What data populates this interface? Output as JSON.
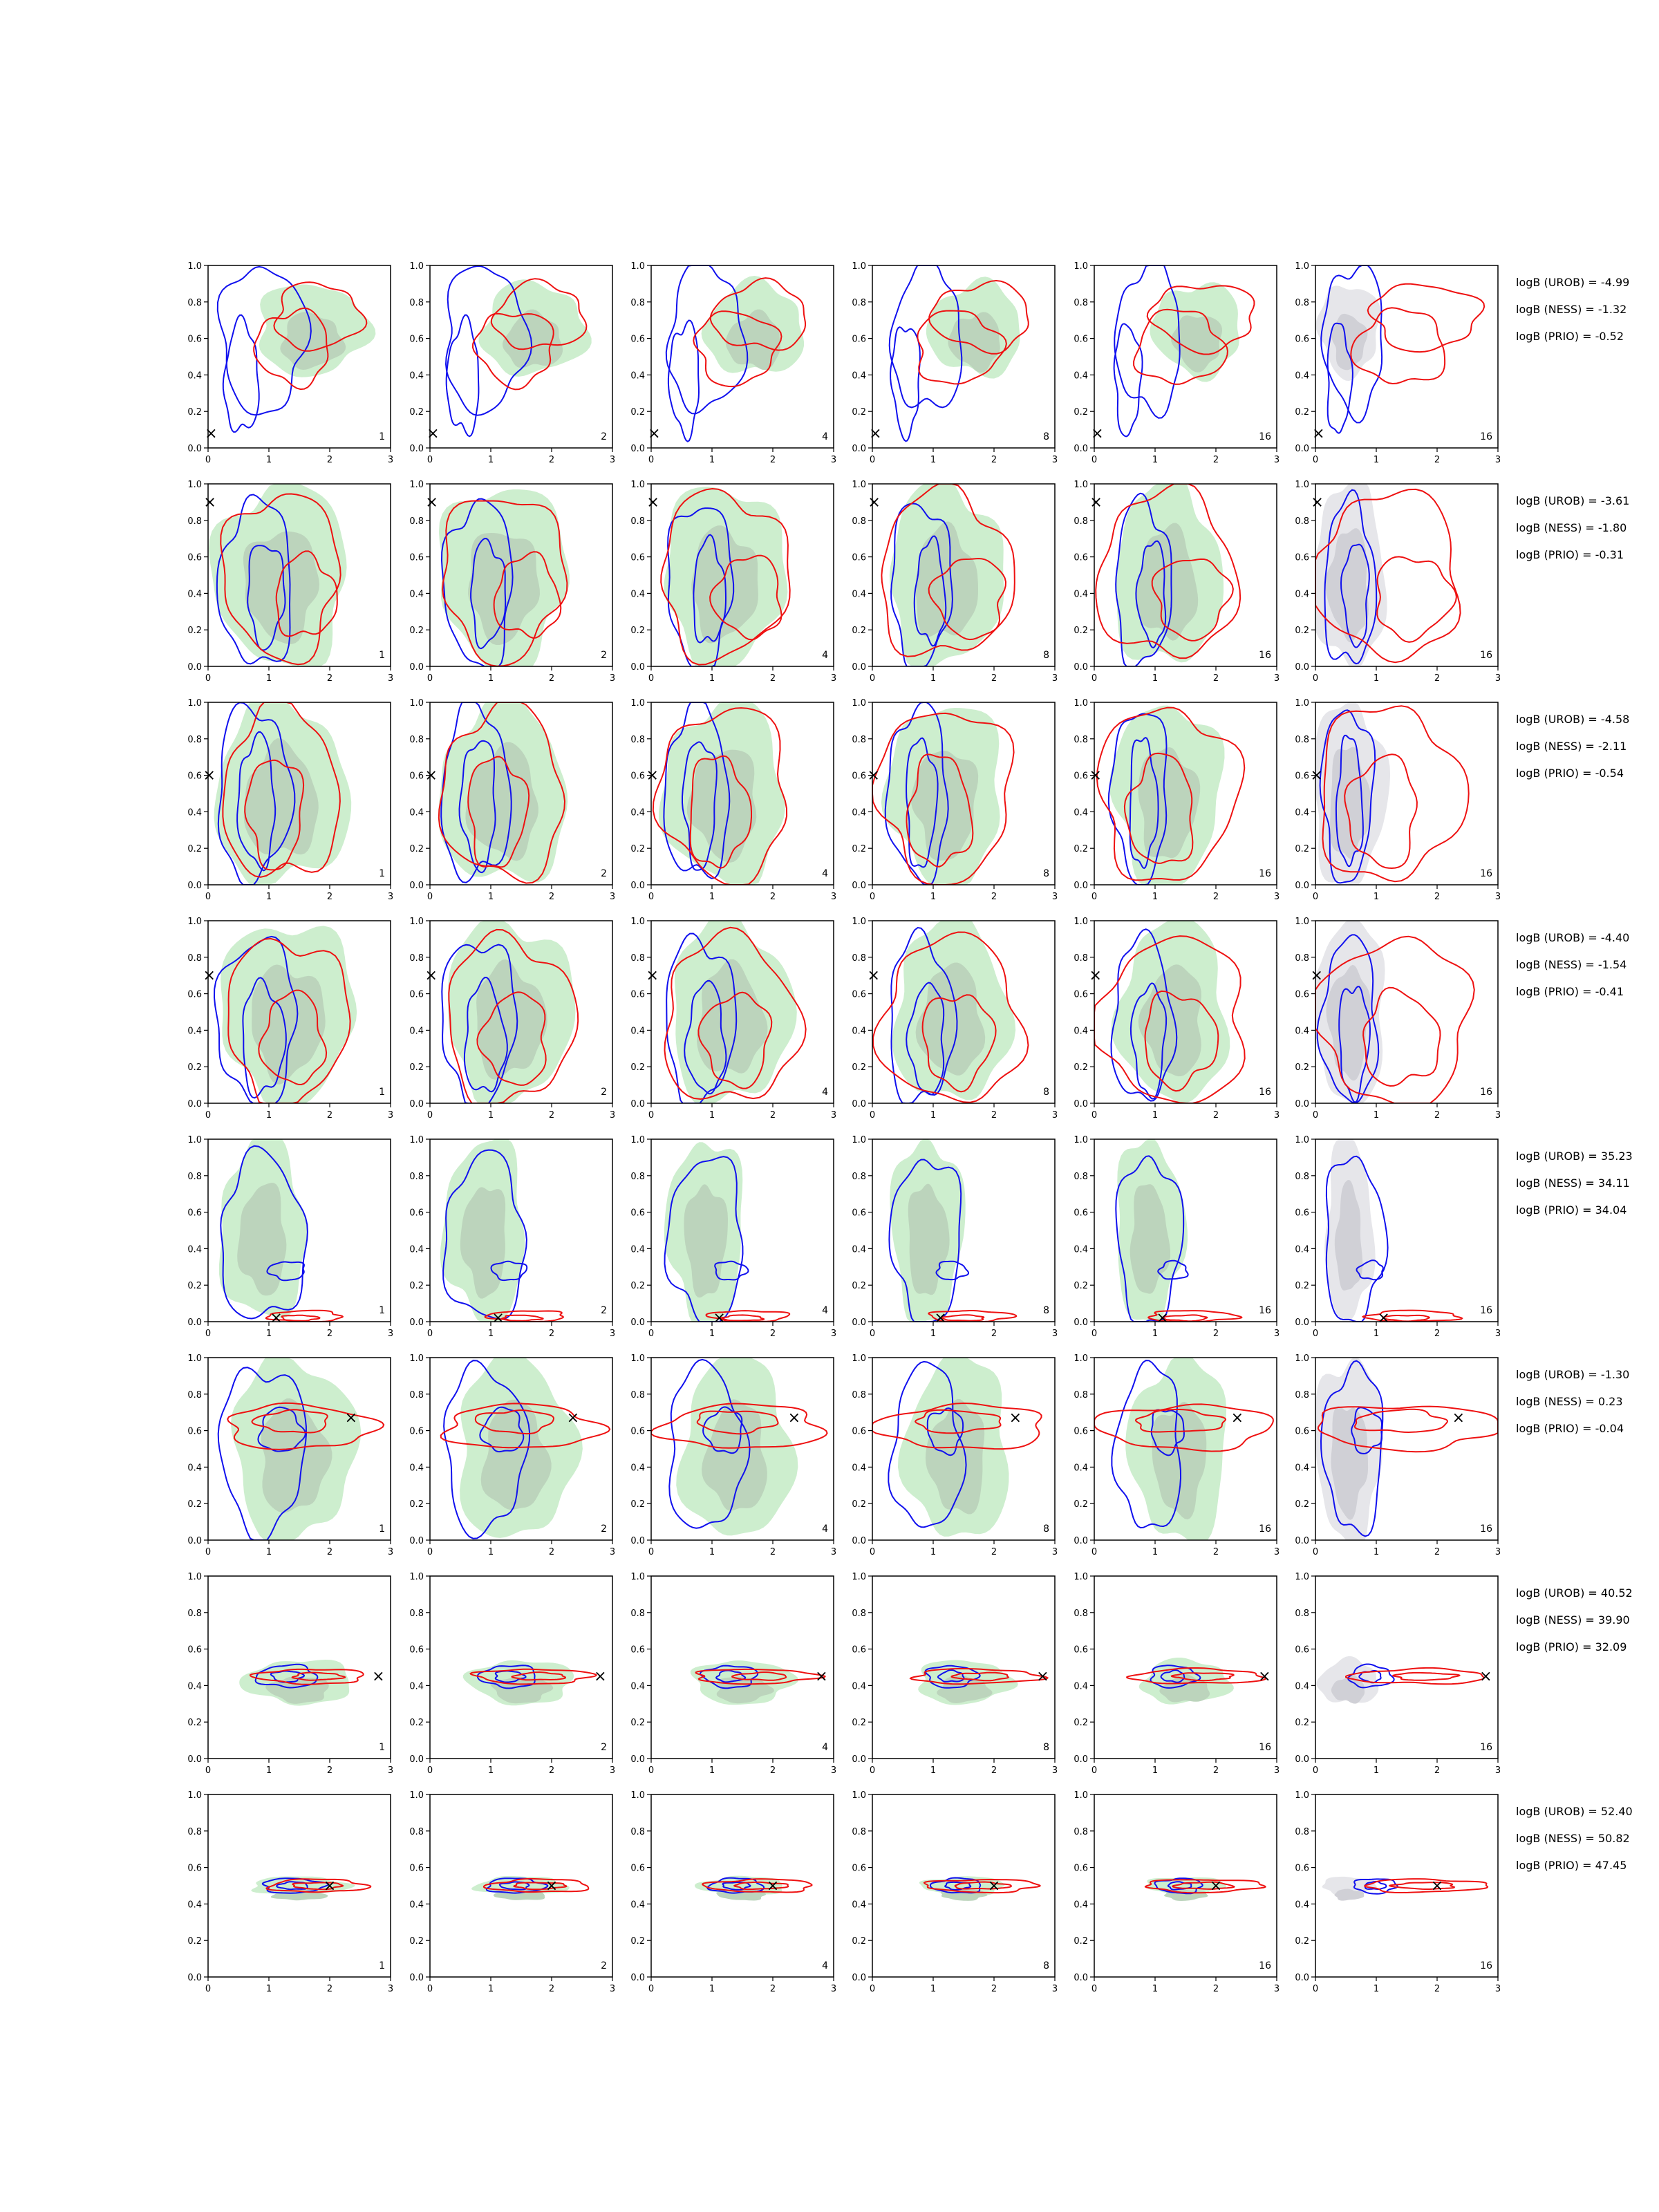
{
  "chart_data": {
    "type": "contour",
    "grid": false,
    "xlim": [
      0,
      3
    ],
    "ylim": [
      0,
      1
    ],
    "xticks": [
      "0",
      "1",
      "2",
      "3"
    ],
    "yticks": [
      "0.0",
      "0.2",
      "0.4",
      "0.6",
      "0.8",
      "1.0"
    ],
    "column_labels": [
      "1",
      "2",
      "4",
      "8",
      "16",
      "16"
    ],
    "colors": {
      "blue_contour": "#1010ee",
      "red_contour": "#ee1111",
      "green_fill_outer": "#cdeece",
      "green_fill_inner": "#bcd4bc",
      "gray_fill_outer": "#e6e6ea",
      "gray_fill_inner": "#d0d0d6",
      "marker": "#000000"
    },
    "marker_symbol": "×",
    "rows": [
      {
        "truth": [
          0.05,
          0.08
        ],
        "logB": [
          "logB (UROB) = -4.99",
          "logB (NESS) = -1.32",
          "logB (PRIO) = -0.52"
        ],
        "blue": [
          [
            0.9,
            0.6,
            0.7,
            0.4
          ],
          [
            0.55,
            0.38,
            0.28,
            0.3
          ]
        ],
        "red": [
          [
            1.8,
            0.72,
            0.7,
            0.18
          ],
          [
            1.4,
            0.55,
            0.6,
            0.2
          ]
        ],
        "green": [
          [
            1.7,
            0.65,
            0.9,
            0.25
          ]
        ]
      },
      {
        "truth": [
          0.03,
          0.9
        ],
        "logB": [
          "logB (UROB) = -3.61",
          "logB (NESS) = -1.80",
          "logB (PRIO) = -0.31"
        ],
        "blue": [
          [
            0.8,
            0.45,
            0.6,
            0.45
          ],
          [
            0.95,
            0.4,
            0.3,
            0.28
          ]
        ],
        "red": [
          [
            1.2,
            0.5,
            0.95,
            0.45
          ],
          [
            1.6,
            0.38,
            0.5,
            0.22
          ]
        ],
        "green": [
          [
            1.2,
            0.5,
            1.1,
            0.5
          ]
        ]
      },
      {
        "truth": [
          0.02,
          0.6
        ],
        "logB": [
          "logB (UROB) = -4.58",
          "logB (NESS) = -2.11",
          "logB (PRIO) = -0.54"
        ],
        "blue": [
          [
            0.75,
            0.5,
            0.6,
            0.47
          ],
          [
            0.8,
            0.45,
            0.3,
            0.35
          ]
        ],
        "red": [
          [
            1.2,
            0.5,
            0.95,
            0.47
          ],
          [
            1.1,
            0.4,
            0.45,
            0.3
          ]
        ],
        "green": [
          [
            1.2,
            0.5,
            1.1,
            0.5
          ]
        ]
      },
      {
        "truth": [
          0.02,
          0.7
        ],
        "logB": [
          "logB (UROB) = -4.40",
          "logB (NESS) = -1.54",
          "logB (PRIO) = -0.41"
        ],
        "blue": [
          [
            0.8,
            0.45,
            0.65,
            0.45
          ],
          [
            0.9,
            0.35,
            0.35,
            0.3
          ]
        ],
        "red": [
          [
            1.3,
            0.45,
            1.0,
            0.45
          ],
          [
            1.4,
            0.35,
            0.5,
            0.25
          ]
        ],
        "green": [
          [
            1.3,
            0.5,
            1.1,
            0.5
          ]
        ]
      },
      {
        "truth": [
          1.12,
          0.02
        ],
        "logB": [
          "logB (UROB) = 35.23",
          "logB (NESS) = 34.11",
          "logB (PRIO) = 34.04"
        ],
        "blue": [
          [
            0.9,
            0.45,
            0.7,
            0.45
          ],
          [
            1.3,
            0.28,
            0.3,
            0.05
          ]
        ],
        "red": [
          [
            1.6,
            0.03,
            0.6,
            0.03
          ],
          [
            1.5,
            0.02,
            0.3,
            0.015
          ]
        ],
        "green": [
          [
            0.9,
            0.5,
            0.7,
            0.5
          ]
        ]
      },
      {
        "truth": [
          2.35,
          0.67
        ],
        "logB": [
          "logB (UROB) = -1.30",
          "logB (NESS) = 0.23",
          "logB (PRIO) = -0.04"
        ],
        "blue": [
          [
            0.9,
            0.5,
            0.7,
            0.45
          ],
          [
            1.2,
            0.6,
            0.35,
            0.12
          ]
        ],
        "red": [
          [
            1.5,
            0.62,
            1.2,
            0.12
          ],
          [
            1.4,
            0.65,
            0.6,
            0.06
          ]
        ],
        "green": [
          [
            1.4,
            0.5,
            1.0,
            0.5
          ]
        ]
      },
      {
        "truth": [
          2.8,
          0.45
        ],
        "logB": [
          "logB (UROB) = 40.52",
          "logB (NESS) = 39.90",
          "logB (PRIO) = 32.09"
        ],
        "blue": [
          [
            1.3,
            0.45,
            0.5,
            0.06
          ],
          [
            1.3,
            0.45,
            0.25,
            0.03
          ]
        ],
        "red": [
          [
            1.7,
            0.45,
            0.9,
            0.04
          ],
          [
            1.8,
            0.45,
            0.4,
            0.02
          ]
        ],
        "green": [
          [
            1.5,
            0.42,
            0.9,
            0.12
          ]
        ]
      },
      {
        "truth": [
          2.0,
          0.5
        ],
        "logB": [
          "logB (UROB) = 52.40",
          "logB (NESS) = 50.82",
          "logB (PRIO) = 47.45"
        ],
        "blue": [
          [
            1.4,
            0.5,
            0.5,
            0.04
          ],
          [
            1.4,
            0.5,
            0.25,
            0.02
          ]
        ],
        "red": [
          [
            1.8,
            0.5,
            0.8,
            0.035
          ],
          [
            1.8,
            0.5,
            0.4,
            0.018
          ]
        ],
        "green": [
          [
            1.5,
            0.5,
            0.8,
            0.05
          ]
        ]
      }
    ]
  }
}
